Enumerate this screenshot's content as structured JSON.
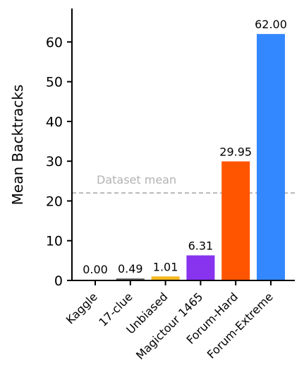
{
  "chart_data": {
    "type": "bar",
    "categories": [
      "Kaggle",
      "17-clue",
      "Unbiased",
      "Magictour 1465",
      "Forum-Hard",
      "Forum-Extreme"
    ],
    "values": [
      0.0,
      0.49,
      1.01,
      6.31,
      29.95,
      62.0
    ],
    "value_labels": [
      "0.00",
      "0.49",
      "1.01",
      "6.31",
      "29.95",
      "62.00"
    ],
    "colors": [
      "#555555",
      "#555555",
      "#f5b820",
      "#8833ee",
      "#ff5500",
      "#3388ff"
    ],
    "ylabel": "Mean Backtracks",
    "xlabel": "",
    "ylim": [
      0,
      68
    ],
    "yticks": [
      0,
      10,
      20,
      30,
      40,
      50,
      60
    ],
    "reference_line": {
      "value": 22,
      "label": "Dataset mean",
      "color": "#b3b3b3",
      "style": "dashed"
    },
    "grid": false
  }
}
